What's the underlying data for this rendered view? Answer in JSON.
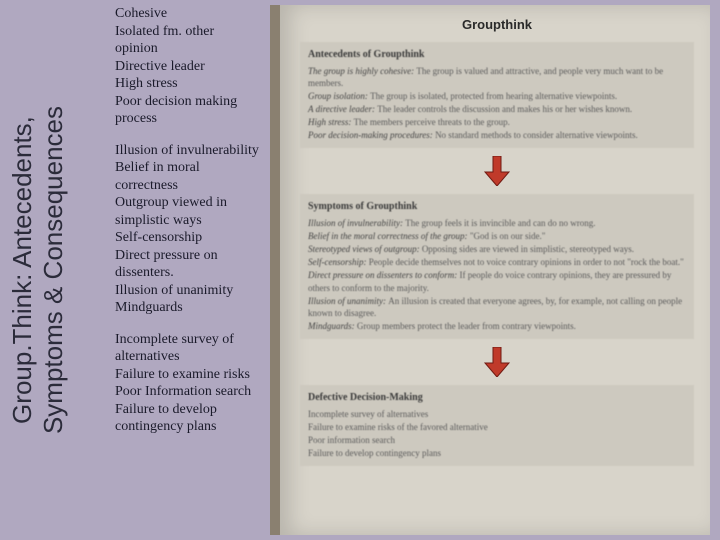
{
  "title": {
    "line1": "Group.Think: Antecedents,",
    "line2": "Symptoms & Consequences"
  },
  "blocks": {
    "antecedents": "Cohesive\nIsolated fm. other opinion\nDirective leader\nHigh stress\nPoor decision making process",
    "symptoms": "Illusion of invulnerability\nBelief in moral correctness\nOutgroup viewed in simplistic ways\nSelf-censorship\nDirect pressure on dissenters.\nIllusion of unanimity\nMindguards",
    "consequences": "Incomplete survey of alternatives\nFailure to examine risks\nPoor Information search\nFailure to develop contingency plans"
  },
  "book": {
    "title": "Groupthink",
    "sections": {
      "antecedents": {
        "head": "Antecedents of Groupthink",
        "items": [
          {
            "term": "The group is highly cohesive:",
            "def": "The group is valued and attractive, and people very much want to be members."
          },
          {
            "term": "Group isolation:",
            "def": "The group is isolated, protected from hearing alternative viewpoints."
          },
          {
            "term": "A directive leader:",
            "def": "The leader controls the discussion and makes his or her wishes known."
          },
          {
            "term": "High stress:",
            "def": "The members perceive threats to the group."
          },
          {
            "term": "Poor decision-making procedures:",
            "def": "No standard methods to consider alternative viewpoints."
          }
        ]
      },
      "symptoms": {
        "head": "Symptoms of Groupthink",
        "items": [
          {
            "term": "Illusion of invulnerability:",
            "def": "The group feels it is invincible and can do no wrong."
          },
          {
            "term": "Belief in the moral correctness of the group:",
            "def": "\"God is on our side.\""
          },
          {
            "term": "Stereotyped views of outgroup:",
            "def": "Opposing sides are viewed in simplistic, stereotyped ways."
          },
          {
            "term": "Self-censorship:",
            "def": "People decide themselves not to voice contrary opinions in order to not \"rock the boat.\""
          },
          {
            "term": "Direct pressure on dissenters to conform:",
            "def": "If people do voice contrary opinions, they are pressured by others to conform to the majority."
          },
          {
            "term": "Illusion of unanimity:",
            "def": "An illusion is created that everyone agrees, by, for example, not calling on people known to disagree."
          },
          {
            "term": "Mindguards:",
            "def": "Group members protect the leader from contrary viewpoints."
          }
        ]
      },
      "defective": {
        "head": "Defective Decision-Making",
        "items": [
          {
            "term": "",
            "def": "Incomplete survey of alternatives"
          },
          {
            "term": "",
            "def": "Failure to examine risks of the favored alternative"
          },
          {
            "term": "",
            "def": "Poor information search"
          },
          {
            "term": "",
            "def": "Failure to develop contingency plans"
          }
        ]
      }
    },
    "arrow_color": "#c03a2a"
  },
  "colors": {
    "background": "#b0a8c0",
    "title_text": "#2b2b3a",
    "body_text": "#1a1a2a",
    "book_bg": "#d8d4ca",
    "section_bg": "#cdc9bf"
  },
  "fonts": {
    "title_family": "Arial",
    "title_size_pt": 20,
    "body_family": "Georgia",
    "body_size_pt": 11
  }
}
